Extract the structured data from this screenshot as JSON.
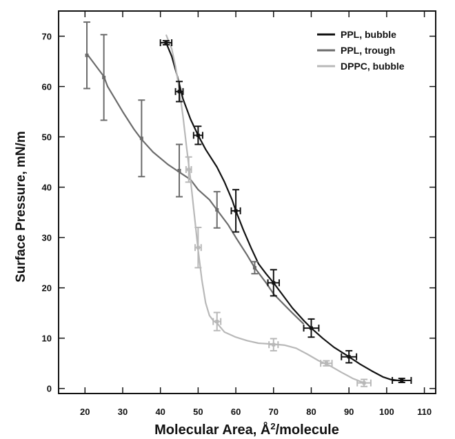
{
  "chart_data": {
    "type": "line",
    "title": "",
    "xlabel": "Molecular Area, Å²/molecule",
    "xlabel_main": "Molecular Area, Å",
    "xlabel_sup": "2",
    "xlabel_tail": "/molecule",
    "ylabel": "Surface Pressure, mN/m",
    "xlim": [
      13,
      113
    ],
    "ylim": [
      -1,
      75
    ],
    "xticks": [
      20,
      30,
      40,
      50,
      60,
      70,
      80,
      90,
      100,
      110
    ],
    "yticks": [
      0,
      10,
      20,
      30,
      40,
      50,
      60,
      70
    ],
    "grid": false,
    "legend_position": "top-right",
    "series": [
      {
        "name": "PPL, bubble",
        "color": "#111111",
        "x": [
          41.5,
          43,
          44.5,
          46,
          48,
          50,
          52,
          55,
          57,
          59,
          60,
          62,
          64,
          66,
          68,
          70,
          72,
          75,
          78,
          80,
          83,
          86,
          90,
          93,
          96,
          99,
          101,
          103,
          105
        ],
        "y": [
          68.7,
          66,
          62,
          57.5,
          53.5,
          50.3,
          47.5,
          44,
          41,
          37.5,
          35.3,
          31.5,
          28,
          24.8,
          22.8,
          21,
          19,
          16,
          13.5,
          12,
          10,
          8.2,
          6.3,
          4.8,
          3.5,
          2.3,
          1.8,
          1.6,
          1.6
        ],
        "error_points": [
          {
            "x": 41.5,
            "y": 68.7,
            "xerr": 1.5,
            "yerr": 0.4
          },
          {
            "x": 45,
            "y": 59,
            "xerr": 1.0,
            "yerr": 2.0
          },
          {
            "x": 50,
            "y": 50.3,
            "xerr": 1.2,
            "yerr": 1.8
          },
          {
            "x": 60,
            "y": 35.3,
            "xerr": 1.2,
            "yerr": 4.2
          },
          {
            "x": 70,
            "y": 21,
            "xerr": 1.5,
            "yerr": 2.6
          },
          {
            "x": 80,
            "y": 12,
            "xerr": 2.0,
            "yerr": 1.8
          },
          {
            "x": 90,
            "y": 6.3,
            "xerr": 2.0,
            "yerr": 1.2
          },
          {
            "x": 104,
            "y": 1.6,
            "xerr": 2.5,
            "yerr": 0.4
          }
        ]
      },
      {
        "name": "PPL, trough",
        "color": "#6b6b6b",
        "x": [
          20.5,
          22,
          23.5,
          25,
          26,
          28,
          30,
          33,
          35,
          38,
          42,
          45,
          48,
          50,
          53,
          55,
          58,
          60,
          63,
          65,
          68,
          70,
          73,
          75,
          78
        ],
        "y": [
          66.5,
          65,
          63.5,
          62,
          60,
          57.5,
          55,
          51.5,
          49.5,
          47,
          44.5,
          43,
          41.5,
          39.5,
          37.5,
          35.5,
          32.5,
          30,
          26.5,
          24,
          21,
          18.8,
          16.5,
          15,
          12.8
        ],
        "error_points": [
          {
            "x": 20.5,
            "y": 66.2,
            "xerr": 0,
            "yerr": 6.6
          },
          {
            "x": 25,
            "y": 61.8,
            "xerr": 0,
            "yerr": 8.5
          },
          {
            "x": 35,
            "y": 49.7,
            "xerr": 0,
            "yerr": 7.6
          },
          {
            "x": 45,
            "y": 43.3,
            "xerr": 0,
            "yerr": 5.2
          },
          {
            "x": 55,
            "y": 35.5,
            "xerr": 0,
            "yerr": 3.6
          },
          {
            "x": 65,
            "y": 24,
            "xerr": 0,
            "yerr": 1.2
          }
        ]
      },
      {
        "name": "DPPC, bubble",
        "color": "#b8b8b8",
        "x": [
          41.5,
          43,
          44,
          45,
          46,
          47,
          48,
          49,
          50,
          51,
          52,
          53,
          54,
          55,
          57,
          60,
          63,
          66,
          70,
          73,
          76,
          79,
          82,
          85,
          88,
          91,
          94
        ],
        "y": [
          70.3,
          67.5,
          64,
          59.5,
          54,
          47.5,
          41.5,
          34.5,
          27.5,
          21.5,
          17,
          14.5,
          13.5,
          13,
          11.2,
          10.2,
          9.5,
          9,
          8.8,
          8.6,
          8,
          6.8,
          5.5,
          4.5,
          3.2,
          2,
          1.1
        ],
        "error_points": [
          {
            "x": 47.5,
            "y": 43.5,
            "xerr": 0.7,
            "yerr": 2.5
          },
          {
            "x": 50,
            "y": 28,
            "xerr": 0.8,
            "yerr": 4.0
          },
          {
            "x": 55,
            "y": 13.3,
            "xerr": 1.0,
            "yerr": 1.8
          },
          {
            "x": 70,
            "y": 8.7,
            "xerr": 1.2,
            "yerr": 1.2
          },
          {
            "x": 84,
            "y": 5.0,
            "xerr": 1.5,
            "yerr": 0.5
          },
          {
            "x": 94,
            "y": 1.1,
            "xerr": 1.8,
            "yerr": 0.7
          }
        ]
      }
    ]
  }
}
